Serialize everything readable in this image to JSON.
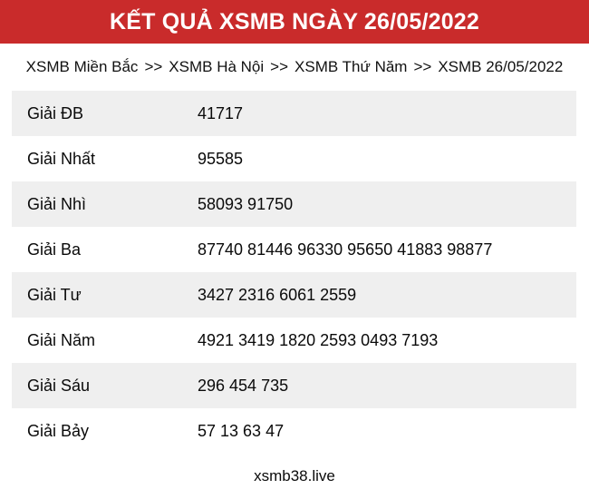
{
  "header": {
    "title": "KẾT QUẢ XSMB NGÀY 26/05/2022"
  },
  "breadcrumb": {
    "separator": ">>",
    "items": [
      {
        "label": "XSMB Miền Bắc"
      },
      {
        "label": "XSMB Hà Nội"
      },
      {
        "label": "XSMB Thứ Năm"
      },
      {
        "label": "XSMB 26/05/2022"
      }
    ]
  },
  "results_table": {
    "rows": [
      {
        "label": "Giải ĐB",
        "value": "41717"
      },
      {
        "label": "Giải Nhất",
        "value": "95585"
      },
      {
        "label": "Giải Nhì",
        "value": "58093 91750"
      },
      {
        "label": "Giải Ba",
        "value": "87740 81446 96330 95650 41883 98877"
      },
      {
        "label": "Giải Tư",
        "value": "3427 2316 6061 2559"
      },
      {
        "label": "Giải Năm",
        "value": "4921 3419 1820 2593 0493 7193"
      },
      {
        "label": "Giải Sáu",
        "value": "296 454 735"
      },
      {
        "label": "Giải Bảy",
        "value": "57 13 63 47"
      }
    ]
  },
  "footer": {
    "site": "xsmb38.live"
  },
  "colors": {
    "header_bg": "#C92B2B",
    "header_text": "#FFFFFF",
    "row_alt_bg": "#EFEFEF",
    "text": "#000000"
  }
}
